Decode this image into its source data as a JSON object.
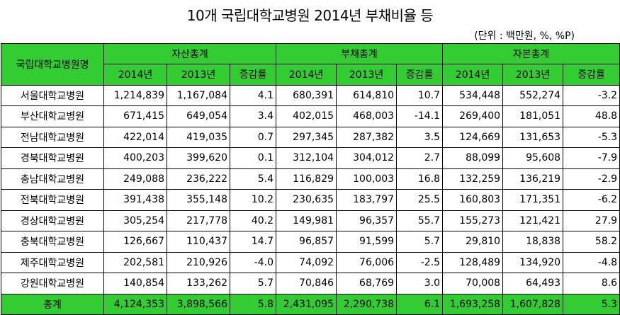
{
  "title": "10개 국립대학교병원 2014년 부채비율 등",
  "unit": "(단위 : 백만원, %, %P)",
  "table": {
    "name_header": "국립대학교병원명",
    "groups": [
      "자산총계",
      "부채총계",
      "자본총계"
    ],
    "sub_headers": [
      "2014년",
      "2013년",
      "증감률",
      "2014년",
      "2013년",
      "증감률",
      "2014년",
      "2013년",
      "증감률"
    ],
    "rows": [
      {
        "name": "서울대학교병원",
        "values": [
          "1,214,839",
          "1,167,084",
          "4.1",
          "680,391",
          "614,810",
          "10.7",
          "534,448",
          "552,274",
          "-3.2"
        ]
      },
      {
        "name": "부산대학교병원",
        "values": [
          "671,415",
          "649,054",
          "3.4",
          "402,015",
          "468,003",
          "-14.1",
          "269,400",
          "181,051",
          "48.8"
        ]
      },
      {
        "name": "전남대학교병원",
        "values": [
          "422,014",
          "419,035",
          "0.7",
          "297,345",
          "287,382",
          "3.5",
          "124,669",
          "131,653",
          "-5.3"
        ]
      },
      {
        "name": "경북대학교병원",
        "values": [
          "400,203",
          "399,620",
          "0.1",
          "312,104",
          "304,012",
          "2.7",
          "88,099",
          "95,608",
          "-7.9"
        ]
      },
      {
        "name": "충남대학교병원",
        "values": [
          "249,088",
          "236,222",
          "5.4",
          "116,829",
          "100,003",
          "16.8",
          "132,259",
          "136,219",
          "-2.9"
        ]
      },
      {
        "name": "전북대학교병원",
        "values": [
          "391,438",
          "355,148",
          "10.2",
          "230,635",
          "183,797",
          "25.5",
          "160,803",
          "171,351",
          "-6.2"
        ]
      },
      {
        "name": "경상대학교병원",
        "values": [
          "305,254",
          "217,778",
          "40.2",
          "149,981",
          "96,357",
          "55.7",
          "155,273",
          "121,421",
          "27.9"
        ]
      },
      {
        "name": "충북대학교병원",
        "values": [
          "126,667",
          "110,437",
          "14.7",
          "96,857",
          "91,599",
          "5.7",
          "29,810",
          "18,838",
          "58.2"
        ]
      },
      {
        "name": "제주대학교병원",
        "values": [
          "202,581",
          "210,926",
          "-4.0",
          "74,092",
          "76,006",
          "-2.5",
          "128,489",
          "134,920",
          "-4.8"
        ]
      },
      {
        "name": "강원대학교병원",
        "values": [
          "140,854",
          "133,262",
          "5.7",
          "70,846",
          "68,769",
          "3.0",
          "70,008",
          "64,493",
          "8.6"
        ]
      }
    ],
    "total": {
      "name": "총계",
      "values": [
        "4,124,353",
        "3,898,566",
        "5.8",
        "2,431,095",
        "2,290,738",
        "6.1",
        "1,693,258",
        "1,607,828",
        "5.3"
      ]
    }
  },
  "colors": {
    "header_bg": "#33cc33",
    "border": "#000000"
  }
}
